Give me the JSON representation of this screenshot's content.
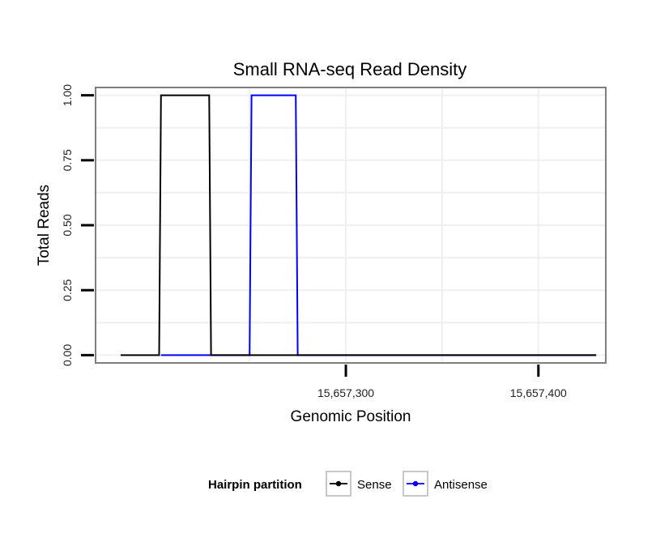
{
  "chart_data": {
    "type": "line",
    "title": "Small RNA-seq Read Density",
    "xlabel": "Genomic Position",
    "ylabel": "Total Reads",
    "xlim": [
      15657170,
      15657435
    ],
    "ylim": [
      -0.03,
      1.03
    ],
    "x_ticks": [
      {
        "value": 15657300,
        "label": "15,657,300"
      },
      {
        "value": 15657400,
        "label": "15,657,400"
      }
    ],
    "y_ticks": [
      {
        "value": 0.0,
        "label": "0.00"
      },
      {
        "value": 0.25,
        "label": "0.25"
      },
      {
        "value": 0.5,
        "label": "0.50"
      },
      {
        "value": 0.75,
        "label": "0.75"
      },
      {
        "value": 1.0,
        "label": "1.00"
      }
    ],
    "grid": true,
    "legend": {
      "title": "Hairpin partition",
      "position": "bottom"
    },
    "series": [
      {
        "name": "Sense",
        "color": "#000000",
        "x": [
          15657183,
          15657203,
          15657204,
          15657229,
          15657230,
          15657430
        ],
        "y": [
          0,
          0,
          1,
          1,
          0,
          0
        ]
      },
      {
        "name": "Antisense",
        "color": "#0000ff",
        "x": [
          15657204,
          15657250,
          15657251,
          15657274,
          15657275,
          15657430
        ],
        "y": [
          0,
          0,
          1,
          1,
          0,
          0
        ]
      }
    ]
  }
}
